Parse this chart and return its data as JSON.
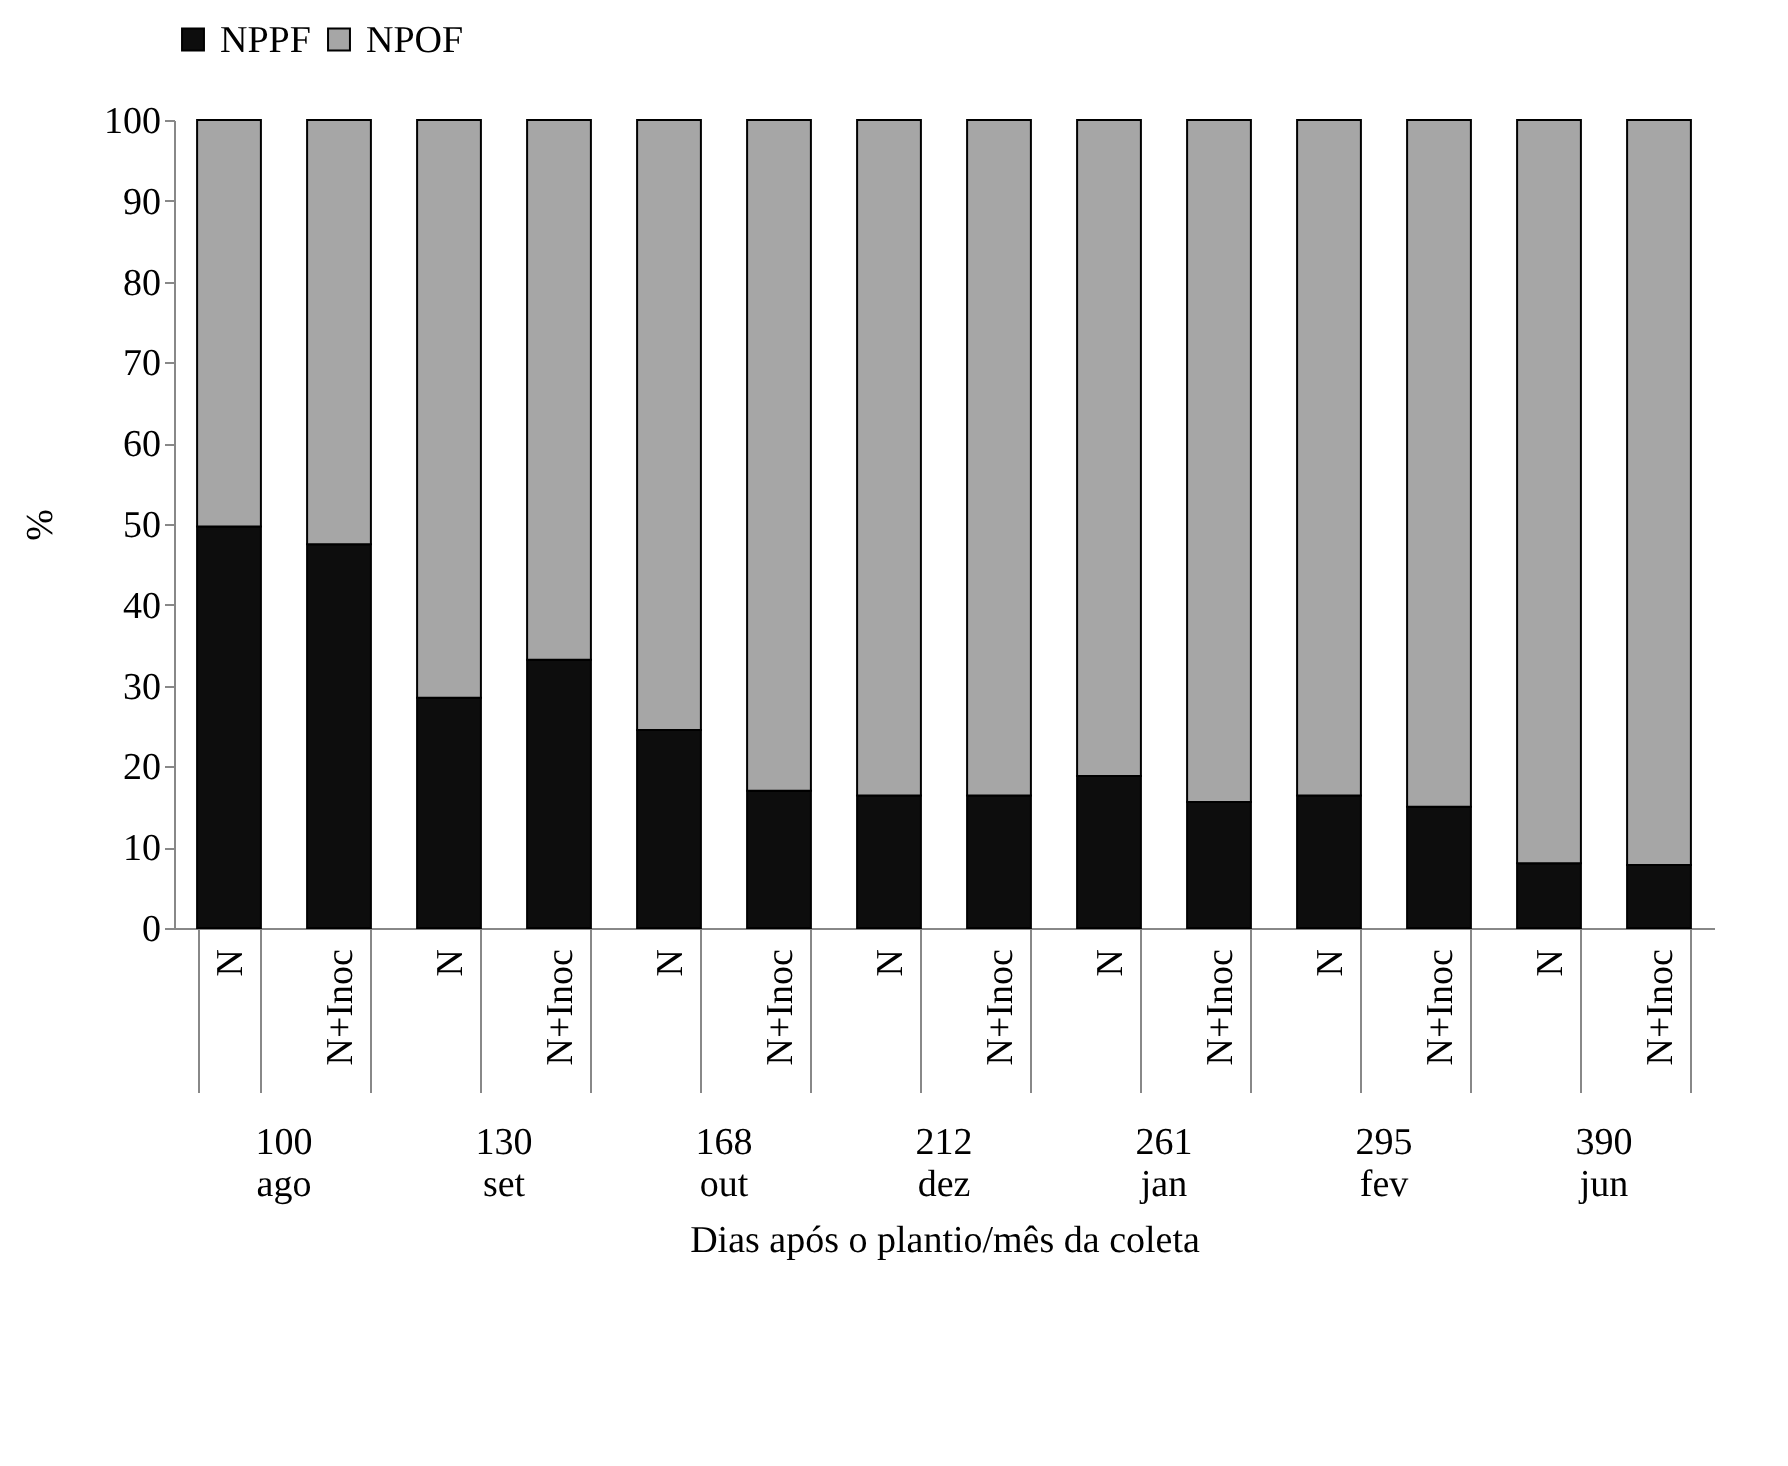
{
  "chart_data": {
    "type": "bar",
    "stacked": true,
    "ylabel": "%",
    "xlabel": "Dias após o plantio/mês da coleta",
    "categories": [
      "N",
      "N+Inoc",
      "N",
      "N+Inoc",
      "N",
      "N+Inoc",
      "N",
      "N+Inoc",
      "N",
      "N+Inoc",
      "N",
      "N+Inoc",
      "N",
      "N+Inoc"
    ],
    "series": [
      {
        "name": "NPPF",
        "color": "#0d0d0d",
        "values": [
          49.7,
          47.5,
          28.5,
          33.2,
          24.5,
          17.0,
          16.4,
          16.4,
          18.8,
          15.6,
          16.4,
          15.0,
          8.0,
          7.8
        ]
      },
      {
        "name": "NPOF",
        "color": "#a6a6a6",
        "values": [
          50.3,
          52.5,
          71.5,
          66.8,
          75.5,
          83.0,
          83.6,
          83.6,
          81.2,
          84.4,
          83.6,
          85.0,
          92.0,
          92.2
        ]
      }
    ],
    "annotations": [
      "100\nago",
      "130\nset",
      "168\nout",
      "212\ndez",
      "261\njan",
      "295\nfev",
      "390\njun"
    ],
    "ylim": [
      0,
      100
    ],
    "yticks": [
      0,
      10,
      20,
      30,
      40,
      50,
      60,
      70,
      80,
      90,
      100
    ],
    "grid": false,
    "legend": "top"
  }
}
